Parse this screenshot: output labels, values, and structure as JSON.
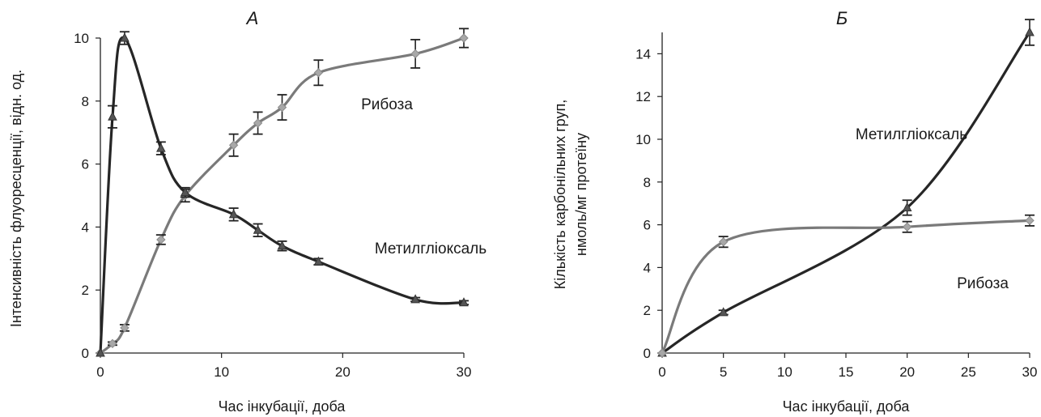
{
  "chart_data": [
    {
      "type": "line",
      "title": "А",
      "xlabel": "Час інкубації, доба",
      "ylabel": "Інтенсивність флуоресценції, відн. од.",
      "xlim": [
        0,
        30
      ],
      "ylim": [
        0,
        10
      ],
      "xticks": [
        "0",
        "10",
        "20",
        "30"
      ],
      "yticks": [
        "0",
        "2",
        "4",
        "6",
        "8",
        "10"
      ],
      "grid": false,
      "legend": "none",
      "series": [
        {
          "name": "Рибоза",
          "color": "#7a7a7a",
          "marker": "diamond",
          "x": [
            0,
            1,
            2,
            5,
            7,
            11,
            13,
            15,
            18,
            26,
            30
          ],
          "y": [
            0,
            0.3,
            0.8,
            3.6,
            5.0,
            6.6,
            7.3,
            7.8,
            8.9,
            9.5,
            10.0
          ],
          "err": [
            0,
            0.05,
            0.1,
            0.15,
            0.2,
            0.35,
            0.35,
            0.4,
            0.4,
            0.45,
            0.3
          ]
        },
        {
          "name": "Метилгліоксаль",
          "color": "#262626",
          "marker": "triangle",
          "x": [
            0,
            1,
            2,
            5,
            7,
            11,
            13,
            15,
            18,
            26,
            30
          ],
          "y": [
            0,
            7.5,
            10.0,
            6.5,
            5.1,
            4.4,
            3.9,
            3.4,
            2.9,
            1.7,
            1.6
          ],
          "err": [
            0,
            0.35,
            0.2,
            0.2,
            0.15,
            0.2,
            0.2,
            0.15,
            0.1,
            0.06,
            0.06
          ]
        }
      ],
      "annotations": [
        "Рибоза",
        "Метилгліоксаль"
      ]
    },
    {
      "type": "line",
      "title": "Б",
      "xlabel": "Час інкубації, доба",
      "ylabel_lines": [
        "Кількість карбонільних груп,",
        "нмоль/мг протеїну"
      ],
      "xlim": [
        0,
        30
      ],
      "ylim": [
        0,
        15
      ],
      "xticks": [
        "0",
        "5",
        "10",
        "15",
        "20",
        "25",
        "30"
      ],
      "yticks": [
        "0",
        "2",
        "4",
        "6",
        "8",
        "10",
        "12",
        "14"
      ],
      "grid": false,
      "legend": "none",
      "series": [
        {
          "name": "Метилгліоксаль",
          "color": "#262626",
          "marker": "triangle",
          "x": [
            0,
            5,
            20,
            30
          ],
          "y": [
            0,
            1.9,
            6.8,
            15.0
          ],
          "err": [
            0,
            0.1,
            0.35,
            0.6
          ]
        },
        {
          "name": "Рибоза",
          "color": "#7a7a7a",
          "marker": "diamond",
          "x": [
            0,
            5,
            20,
            30
          ],
          "y": [
            0,
            5.2,
            5.9,
            6.2
          ],
          "err": [
            0,
            0.25,
            0.25,
            0.25
          ]
        }
      ],
      "annotations": [
        "Метилгліоксаль",
        "Рибоза"
      ]
    }
  ]
}
